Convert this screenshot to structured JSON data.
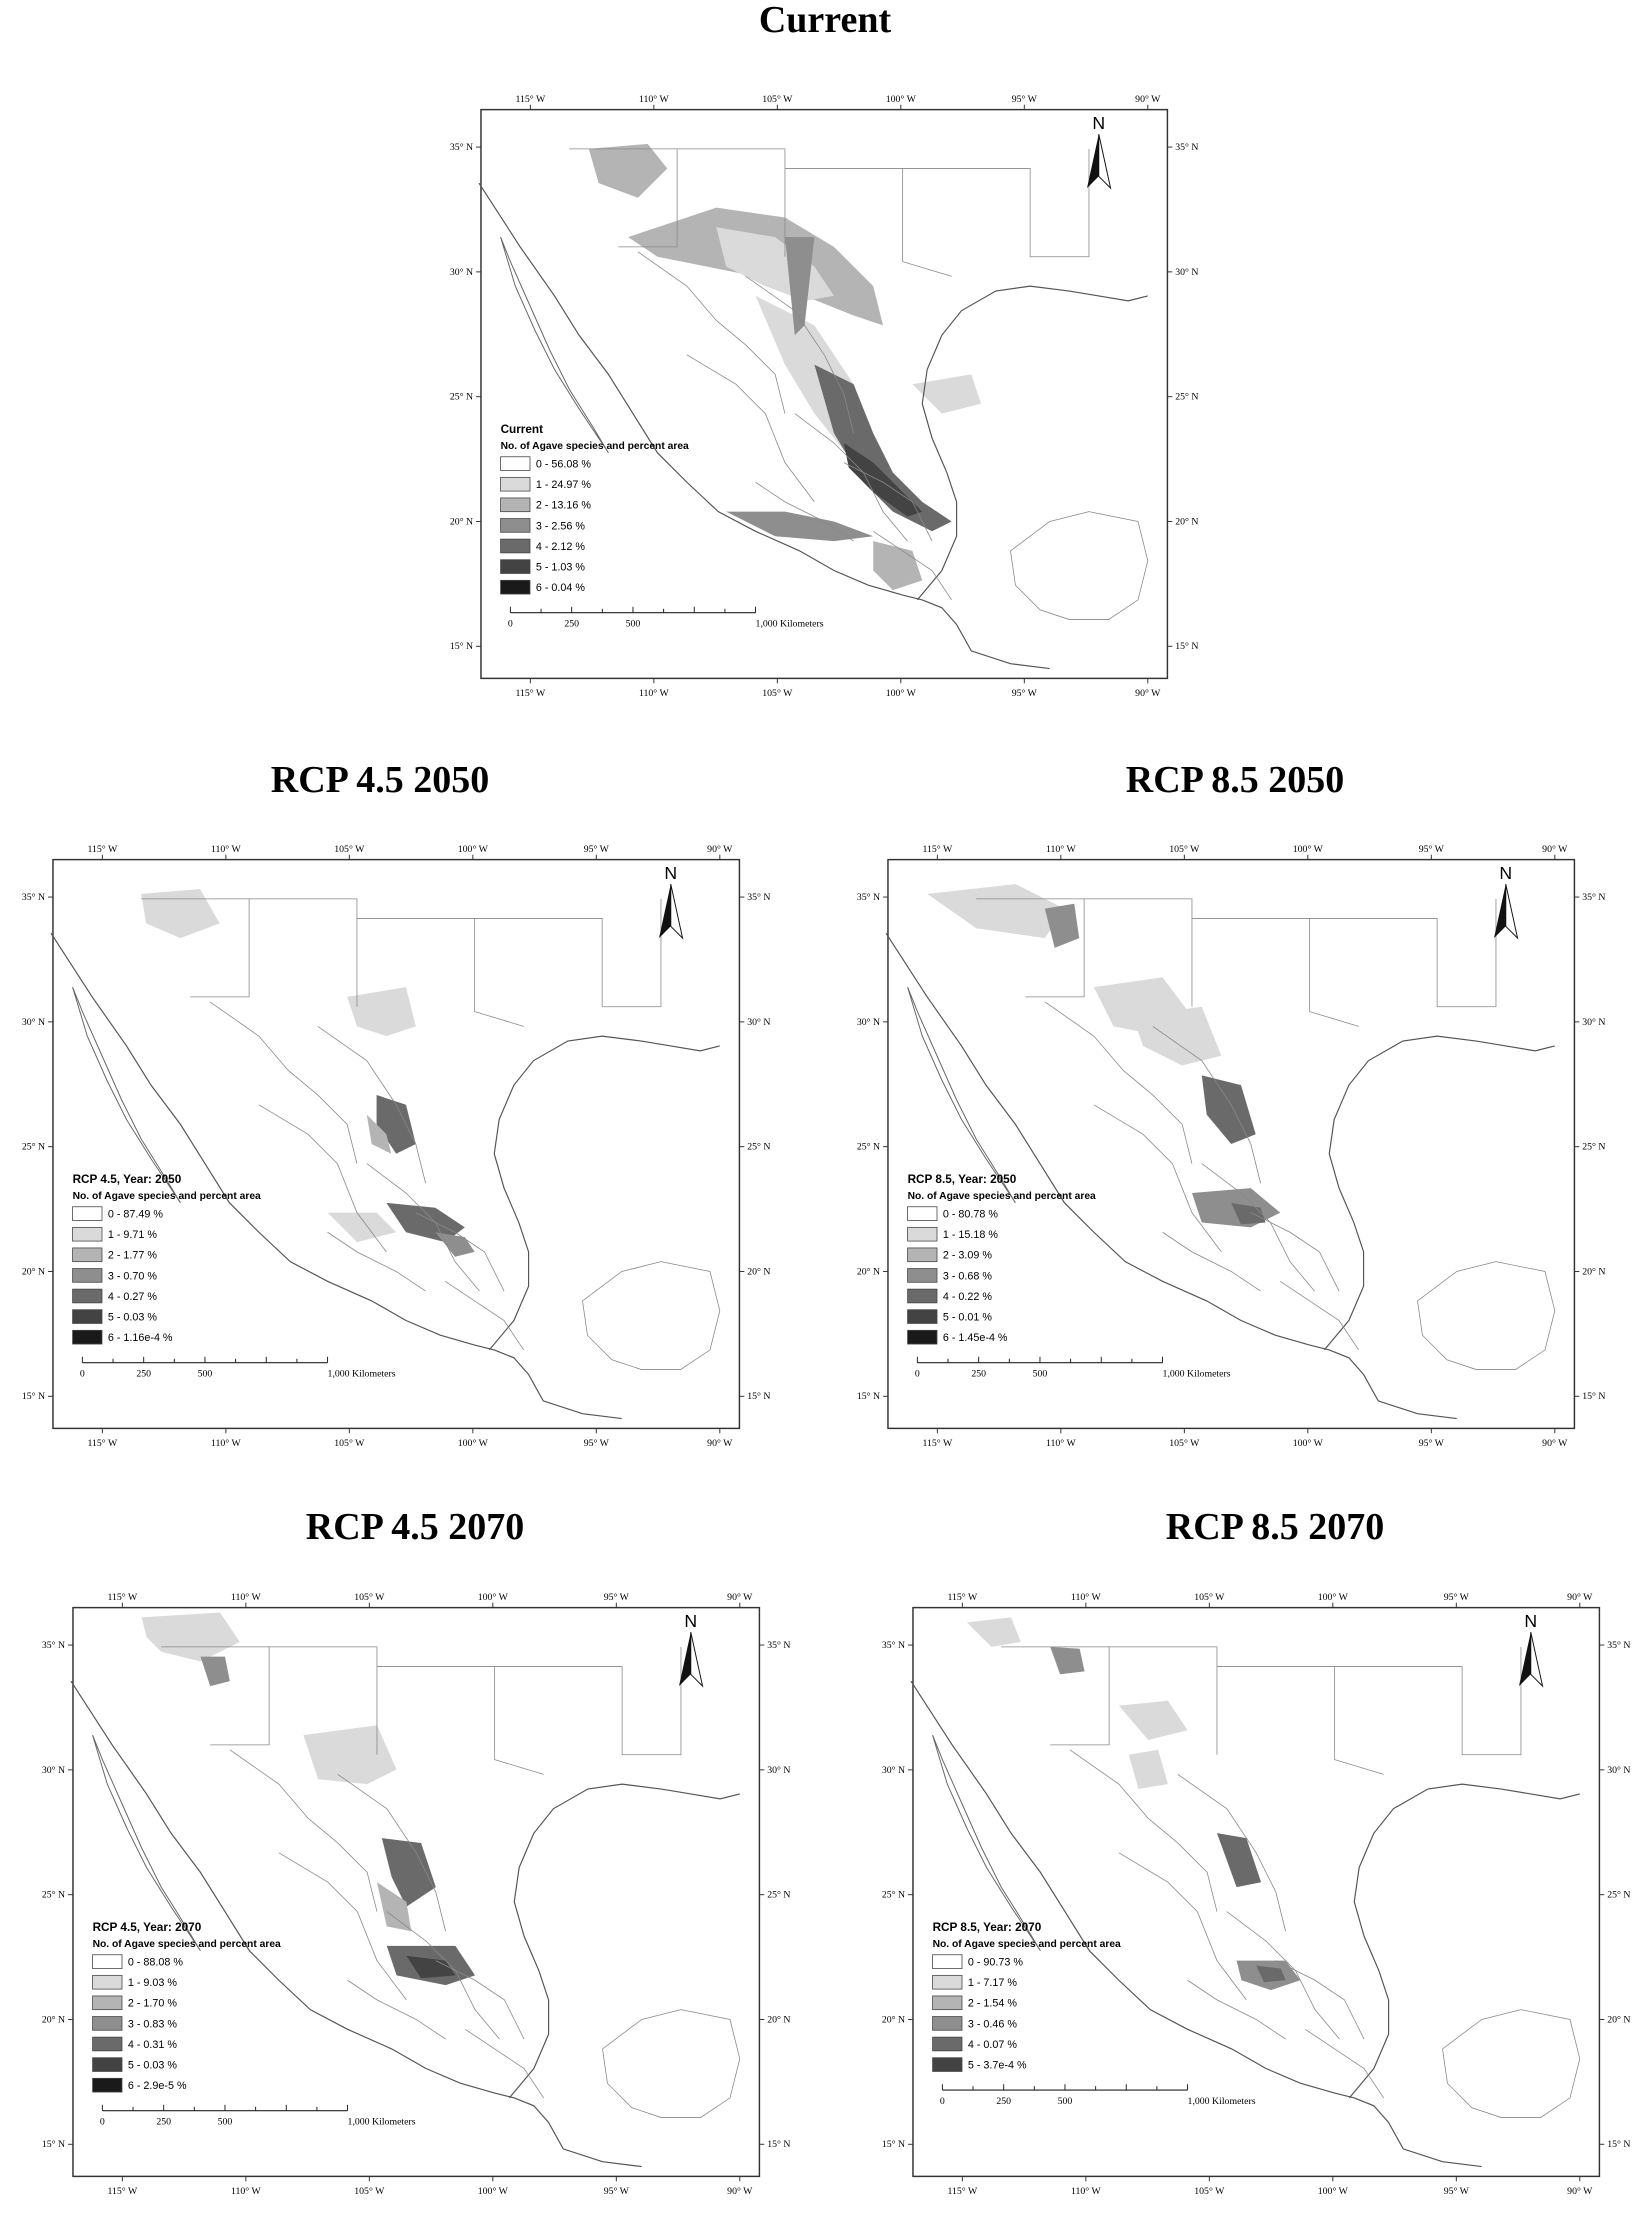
{
  "maps": [
    {
      "id": "current",
      "title": "Current",
      "legend_title": "Current",
      "legend_subtitle": "No. of Agave species and percent area",
      "legend_items": [
        {
          "label": "0 - 56.08 %",
          "color": "#ffffff"
        },
        {
          "label": "1 - 24.97 %",
          "color": "#dadada"
        },
        {
          "label": "2 - 13.16 %",
          "color": "#b4b4b4"
        },
        {
          "label": "3 - 2.56 %",
          "color": "#8e8e8e"
        },
        {
          "label": "4 - 2.12 %",
          "color": "#6a6a6a"
        },
        {
          "label": "5 - 1.03 %",
          "color": "#434343"
        },
        {
          "label": "6 - 0.04 %",
          "color": "#1a1a1a"
        }
      ]
    },
    {
      "id": "rcp45-2050",
      "title": "RCP 4.5 2050",
      "legend_title": "RCP 4.5, Year: 2050",
      "legend_subtitle": "No. of Agave species and percent area",
      "legend_items": [
        {
          "label": "0 - 87.49 %",
          "color": "#ffffff"
        },
        {
          "label": "1 - 9.71 %",
          "color": "#dadada"
        },
        {
          "label": "2 - 1.77 %",
          "color": "#b4b4b4"
        },
        {
          "label": "3 - 0.70 %",
          "color": "#8e8e8e"
        },
        {
          "label": "4 - 0.27 %",
          "color": "#6a6a6a"
        },
        {
          "label": "5 - 0.03 %",
          "color": "#434343"
        },
        {
          "label": "6 - 1.16e-4 %",
          "color": "#1a1a1a"
        }
      ]
    },
    {
      "id": "rcp85-2050",
      "title": "RCP 8.5 2050",
      "legend_title": "RCP 8.5, Year: 2050",
      "legend_subtitle": "No. of Agave species and percent area",
      "legend_items": [
        {
          "label": "0 - 80.78 %",
          "color": "#ffffff"
        },
        {
          "label": "1 - 15.18 %",
          "color": "#dadada"
        },
        {
          "label": "2 - 3.09 %",
          "color": "#b4b4b4"
        },
        {
          "label": "3 - 0.68 %",
          "color": "#8e8e8e"
        },
        {
          "label": "4 - 0.22 %",
          "color": "#6a6a6a"
        },
        {
          "label": "5 - 0.01 %",
          "color": "#434343"
        },
        {
          "label": "6 - 1.45e-4 %",
          "color": "#1a1a1a"
        }
      ]
    },
    {
      "id": "rcp45-2070",
      "title": "RCP 4.5 2070",
      "legend_title": "RCP 4.5, Year: 2070",
      "legend_subtitle": "No. of Agave species and percent area",
      "legend_items": [
        {
          "label": "0 - 88.08 %",
          "color": "#ffffff"
        },
        {
          "label": "1 - 9.03 %",
          "color": "#dadada"
        },
        {
          "label": "2 - 1.70 %",
          "color": "#b4b4b4"
        },
        {
          "label": "3 - 0.83 %",
          "color": "#8e8e8e"
        },
        {
          "label": "4 - 0.31 %",
          "color": "#6a6a6a"
        },
        {
          "label": "5 - 0.03 %",
          "color": "#434343"
        },
        {
          "label": "6 - 2.9e-5 %",
          "color": "#1a1a1a"
        }
      ]
    },
    {
      "id": "rcp85-2070",
      "title": "RCP 8.5 2070",
      "legend_title": "RCP 8.5, Year: 2070",
      "legend_subtitle": "No. of Agave species and percent area",
      "legend_items": [
        {
          "label": "0 - 90.73 %",
          "color": "#ffffff"
        },
        {
          "label": "1 - 7.17 %",
          "color": "#dadada"
        },
        {
          "label": "2 - 1.54 %",
          "color": "#b4b4b4"
        },
        {
          "label": "3 - 0.46 %",
          "color": "#8e8e8e"
        },
        {
          "label": "4 - 0.07 %",
          "color": "#6a6a6a"
        },
        {
          "label": "5 - 3.7e-4 %",
          "color": "#434343"
        }
      ]
    }
  ],
  "longitude_ticks": [
    "115° W",
    "110° W",
    "105° W",
    "100° W",
    "95° W",
    "90° W"
  ],
  "latitude_ticks": [
    "35° N",
    "30° N",
    "25° N",
    "20° N",
    "15° N"
  ],
  "scale_bar": {
    "labels": [
      "0",
      "250",
      "500",
      "1,000 Kilometers"
    ]
  },
  "north_arrow": {
    "label": "N"
  }
}
